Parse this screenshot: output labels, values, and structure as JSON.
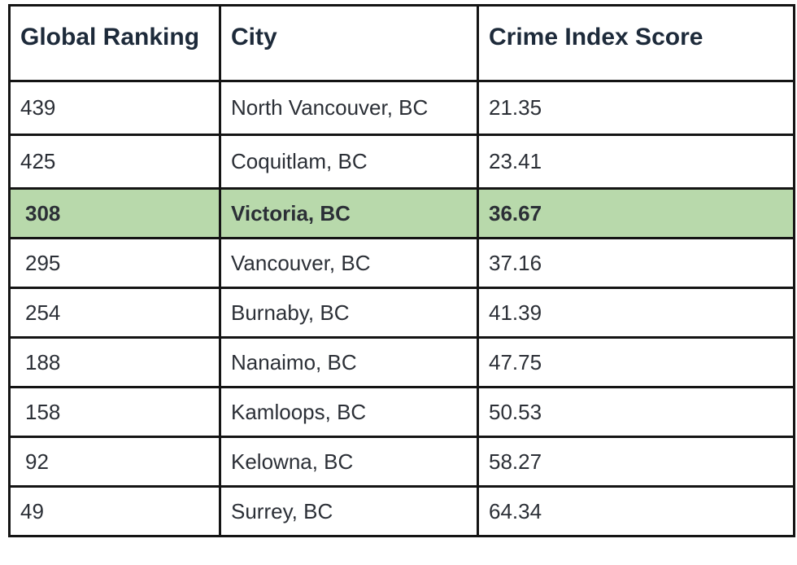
{
  "table": {
    "headers": [
      "Global Ranking",
      "City",
      "Crime Index Score"
    ],
    "rows": [
      {
        "rank": "439",
        "city": "North Vancouver, BC",
        "score": "21.35",
        "highlighted": false
      },
      {
        "rank": "425",
        "city": "Coquitlam, BC",
        "score": "23.41",
        "highlighted": false
      },
      {
        "rank": "308",
        "city": "Victoria, BC",
        "score": "36.67",
        "highlighted": true
      },
      {
        "rank": "295",
        "city": "Vancouver, BC",
        "score": "37.16",
        "highlighted": false
      },
      {
        "rank": "254",
        "city": "Burnaby, BC",
        "score": "41.39",
        "highlighted": false
      },
      {
        "rank": "188",
        "city": "Nanaimo, BC",
        "score": "47.75",
        "highlighted": false
      },
      {
        "rank": "158",
        "city": "Kamloops, BC",
        "score": "50.53",
        "highlighted": false
      },
      {
        "rank": "92",
        "city": "Kelowna, BC",
        "score": "58.27",
        "highlighted": false
      },
      {
        "rank": "49",
        "city": "Surrey, BC",
        "score": "64.34",
        "highlighted": false
      }
    ],
    "highlight_color": "#b8d9ab",
    "border_color": "#141414"
  }
}
